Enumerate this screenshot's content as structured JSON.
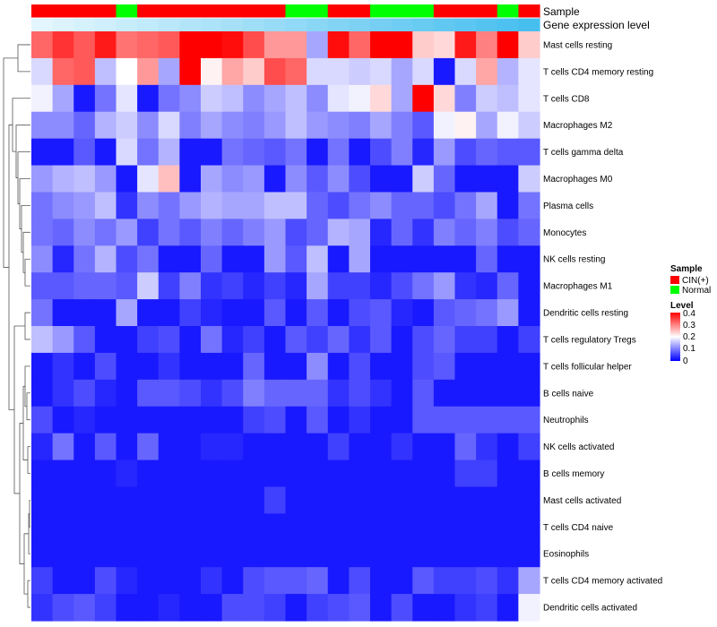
{
  "chart_data": {
    "type": "heatmap",
    "title": "",
    "columns": 24,
    "annotation_tracks": [
      {
        "name": "Sample",
        "values": [
          "CIN(+)",
          "CIN(+)",
          "CIN(+)",
          "CIN(+)",
          "Normal",
          "CIN(+)",
          "CIN(+)",
          "CIN(+)",
          "CIN(+)",
          "CIN(+)",
          "CIN(+)",
          "CIN(+)",
          "Normal",
          "Normal",
          "CIN(+)",
          "CIN(+)",
          "Normal",
          "Normal",
          "Normal",
          "CIN(+)",
          "CIN(+)",
          "CIN(+)",
          "Normal",
          "CIN(+)"
        ]
      },
      {
        "name": "Gene expression level",
        "values": [
          0.02,
          0.06,
          0.1,
          0.14,
          0.18,
          0.22,
          0.26,
          0.3,
          0.34,
          0.38,
          0.42,
          0.46,
          0.5,
          0.54,
          0.58,
          0.62,
          0.66,
          0.7,
          0.74,
          0.78,
          0.82,
          0.86,
          0.9,
          0.94
        ]
      }
    ],
    "rows": [
      {
        "name": "Mast cells resting",
        "values": [
          0.32,
          0.36,
          0.33,
          0.38,
          0.31,
          0.32,
          0.33,
          0.4,
          0.4,
          0.39,
          0.34,
          0.28,
          0.28,
          0.13,
          0.39,
          0.32,
          0.4,
          0.4,
          0.24,
          0.23,
          0.38,
          0.3,
          0.4,
          0.24
        ]
      },
      {
        "name": "T cells CD4 memory resting",
        "values": [
          0.17,
          0.32,
          0.33,
          0.15,
          0.2,
          0.28,
          0.13,
          0.4,
          0.21,
          0.27,
          0.24,
          0.34,
          0.32,
          0.17,
          0.17,
          0.16,
          0.17,
          0.13,
          0.17,
          0.02,
          0.17,
          0.27,
          0.14,
          0.18
        ]
      },
      {
        "name": "T cells CD8",
        "values": [
          0.19,
          0.13,
          0.02,
          0.09,
          0.18,
          0.02,
          0.09,
          0.11,
          0.16,
          0.15,
          0.11,
          0.13,
          0.15,
          0.11,
          0.18,
          0.19,
          0.23,
          0.13,
          0.4,
          0.23,
          0.1,
          0.16,
          0.15,
          0.18
        ]
      },
      {
        "name": "Macrophages M2",
        "values": [
          0.11,
          0.11,
          0.08,
          0.14,
          0.16,
          0.11,
          0.17,
          0.1,
          0.13,
          0.11,
          0.1,
          0.12,
          0.15,
          0.12,
          0.11,
          0.1,
          0.13,
          0.1,
          0.07,
          0.19,
          0.21,
          0.13,
          0.19,
          0.16
        ]
      },
      {
        "name": "T cells gamma delta",
        "values": [
          0.02,
          0.02,
          0.07,
          0.02,
          0.17,
          0.09,
          0.14,
          0.02,
          0.02,
          0.09,
          0.08,
          0.07,
          0.09,
          0.02,
          0.09,
          0.02,
          0.06,
          0.1,
          0.03,
          0.12,
          0.06,
          0.08,
          0.07,
          0.07
        ]
      },
      {
        "name": "Macrophages M0",
        "values": [
          0.12,
          0.14,
          0.15,
          0.12,
          0.02,
          0.18,
          0.25,
          0.02,
          0.13,
          0.11,
          0.12,
          0.02,
          0.11,
          0.07,
          0.11,
          0.06,
          0.02,
          0.02,
          0.16,
          0.08,
          0.02,
          0.02,
          0.02,
          0.16
        ]
      },
      {
        "name": "Plasma cells",
        "values": [
          0.09,
          0.11,
          0.12,
          0.15,
          0.04,
          0.11,
          0.09,
          0.12,
          0.14,
          0.13,
          0.13,
          0.15,
          0.15,
          0.08,
          0.06,
          0.09,
          0.11,
          0.08,
          0.08,
          0.06,
          0.09,
          0.13,
          0.02,
          0.09
        ]
      },
      {
        "name": "Monocytes",
        "values": [
          0.09,
          0.08,
          0.11,
          0.09,
          0.12,
          0.05,
          0.09,
          0.07,
          0.1,
          0.08,
          0.1,
          0.12,
          0.06,
          0.08,
          0.14,
          0.13,
          0.03,
          0.08,
          0.04,
          0.1,
          0.08,
          0.1,
          0.06,
          0.08
        ]
      },
      {
        "name": "NK cells resting",
        "values": [
          0.11,
          0.03,
          0.09,
          0.14,
          0.06,
          0.09,
          0.02,
          0.02,
          0.08,
          0.02,
          0.02,
          0.12,
          0.07,
          0.15,
          0.02,
          0.13,
          0.02,
          0.02,
          0.02,
          0.02,
          0.02,
          0.08,
          0.02,
          0.02
        ]
      },
      {
        "name": "Macrophages M1",
        "values": [
          0.07,
          0.07,
          0.08,
          0.08,
          0.07,
          0.16,
          0.05,
          0.1,
          0.04,
          0.05,
          0.03,
          0.05,
          0.03,
          0.13,
          0.05,
          0.05,
          0.03,
          0.06,
          0.09,
          0.12,
          0.04,
          0.03,
          0.08,
          0.02
        ]
      },
      {
        "name": "Dendritic cells resting",
        "values": [
          0.09,
          0.02,
          0.02,
          0.02,
          0.13,
          0.02,
          0.02,
          0.05,
          0.03,
          0.02,
          0.02,
          0.07,
          0.02,
          0.07,
          0.02,
          0.06,
          0.07,
          0.03,
          0.02,
          0.07,
          0.08,
          0.09,
          0.12,
          0.02
        ]
      },
      {
        "name": "T cells regulatory  Tregs",
        "values": [
          0.15,
          0.12,
          0.07,
          0.02,
          0.02,
          0.05,
          0.06,
          0.02,
          0.09,
          0.03,
          0.05,
          0.02,
          0.07,
          0.05,
          0.08,
          0.04,
          0.07,
          0.02,
          0.06,
          0.08,
          0.05,
          0.05,
          0.02,
          0.05
        ]
      },
      {
        "name": "T cells follicular helper",
        "values": [
          0.02,
          0.04,
          0.02,
          0.06,
          0.02,
          0.02,
          0.04,
          0.02,
          0.02,
          0.02,
          0.08,
          0.02,
          0.02,
          0.11,
          0.02,
          0.06,
          0.02,
          0.02,
          0.06,
          0.07,
          0.02,
          0.02,
          0.02,
          0.02
        ]
      },
      {
        "name": "B cells naive",
        "values": [
          0.02,
          0.04,
          0.06,
          0.03,
          0.02,
          0.07,
          0.07,
          0.06,
          0.04,
          0.06,
          0.1,
          0.08,
          0.08,
          0.08,
          0.04,
          0.06,
          0.04,
          0.02,
          0.07,
          0.02,
          0.02,
          0.02,
          0.02,
          0.02
        ]
      },
      {
        "name": "Neutrophils",
        "values": [
          0.06,
          0.02,
          0.03,
          0.02,
          0.02,
          0.02,
          0.02,
          0.02,
          0.02,
          0.02,
          0.05,
          0.06,
          0.02,
          0.07,
          0.02,
          0.04,
          0.02,
          0.02,
          0.07,
          0.07,
          0.07,
          0.07,
          0.07,
          0.07
        ]
      },
      {
        "name": "NK cells activated",
        "values": [
          0.03,
          0.09,
          0.02,
          0.07,
          0.02,
          0.08,
          0.02,
          0.02,
          0.03,
          0.03,
          0.02,
          0.02,
          0.02,
          0.02,
          0.05,
          0.02,
          0.02,
          0.04,
          0.02,
          0.02,
          0.08,
          0.04,
          0.02,
          0.05
        ]
      },
      {
        "name": "B cells memory",
        "values": [
          0.02,
          0.02,
          0.02,
          0.02,
          0.03,
          0.02,
          0.02,
          0.02,
          0.02,
          0.02,
          0.02,
          0.02,
          0.02,
          0.02,
          0.02,
          0.02,
          0.02,
          0.02,
          0.02,
          0.02,
          0.05,
          0.05,
          0.02,
          0.02
        ]
      },
      {
        "name": "Mast cells activated",
        "values": [
          0.02,
          0.02,
          0.02,
          0.02,
          0.02,
          0.02,
          0.02,
          0.02,
          0.02,
          0.02,
          0.02,
          0.05,
          0.02,
          0.02,
          0.02,
          0.02,
          0.02,
          0.02,
          0.02,
          0.02,
          0.02,
          0.02,
          0.02,
          0.02
        ]
      },
      {
        "name": "T cells CD4 naive",
        "values": [
          0.02,
          0.02,
          0.02,
          0.02,
          0.02,
          0.02,
          0.02,
          0.02,
          0.02,
          0.02,
          0.02,
          0.02,
          0.02,
          0.02,
          0.02,
          0.02,
          0.02,
          0.02,
          0.02,
          0.02,
          0.02,
          0.02,
          0.02,
          0.02
        ]
      },
      {
        "name": "Eosinophils",
        "values": [
          0.02,
          0.02,
          0.02,
          0.02,
          0.02,
          0.02,
          0.02,
          0.02,
          0.02,
          0.02,
          0.02,
          0.02,
          0.02,
          0.02,
          0.02,
          0.02,
          0.02,
          0.02,
          0.02,
          0.02,
          0.02,
          0.02,
          0.02,
          0.02
        ]
      },
      {
        "name": "T cells CD4 memory activated",
        "values": [
          0.05,
          0.02,
          0.02,
          0.06,
          0.03,
          0.02,
          0.02,
          0.02,
          0.04,
          0.02,
          0.06,
          0.07,
          0.07,
          0.08,
          0.02,
          0.06,
          0.02,
          0.02,
          0.07,
          0.05,
          0.05,
          0.06,
          0.04,
          0.13
        ]
      },
      {
        "name": "Dendritic cells activated",
        "values": [
          0.04,
          0.06,
          0.07,
          0.05,
          0.02,
          0.02,
          0.03,
          0.02,
          0.02,
          0.06,
          0.06,
          0.05,
          0.02,
          0.05,
          0.06,
          0.07,
          0.02,
          0.06,
          0.02,
          0.02,
          0.04,
          0.05,
          0.02,
          0.19
        ]
      }
    ],
    "legend": {
      "sample_title": "Sample",
      "sample_items": [
        {
          "label": "CIN(+)",
          "color": "#ff0000"
        },
        {
          "label": "Normal",
          "color": "#00ff00"
        }
      ],
      "level_title": "Level",
      "level_ticks": [
        "0.4",
        "0.3",
        "0.2",
        "0.1",
        "0"
      ],
      "level_range": [
        0,
        0.4
      ]
    },
    "colors": {
      "low": "#0000ff",
      "mid": "#ffffff",
      "high": "#ff0000",
      "expr_low": "#e6f7fd",
      "expr_high": "#3cbbee",
      "dendrogram": "#555555"
    }
  }
}
